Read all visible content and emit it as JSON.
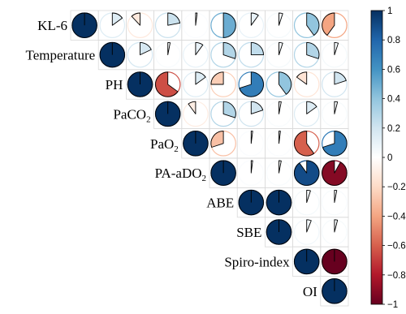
{
  "chart_data": {
    "type": "heatmap",
    "style": "corrplot-pie-upper",
    "variables": [
      [
        "KL-6",
        ""
      ],
      [
        "Temperature",
        ""
      ],
      [
        "PH",
        ""
      ],
      [
        "PaCO",
        "2"
      ],
      [
        "PaO",
        "2"
      ],
      [
        "PA-aDO",
        "2"
      ],
      [
        "ABE",
        ""
      ],
      [
        "SBE",
        ""
      ],
      [
        "Spiro-index",
        ""
      ],
      [
        "OI",
        ""
      ]
    ],
    "matrix": [
      [
        1.0,
        0.15,
        -0.12,
        0.22,
        0.02,
        0.5,
        0.1,
        0.05,
        0.4,
        -0.4
      ],
      [
        0.15,
        1.0,
        0.18,
        0.03,
        0.1,
        0.3,
        0.25,
        0.05,
        0.3,
        0.05
      ],
      [
        -0.12,
        0.18,
        1.0,
        -0.65,
        0.15,
        -0.25,
        0.7,
        0.4,
        -0.15,
        0.2
      ],
      [
        0.22,
        0.03,
        -0.65,
        1.0,
        -0.1,
        0.3,
        0.2,
        0.03,
        0.15,
        0.04
      ],
      [
        0.02,
        0.1,
        0.15,
        -0.1,
        1.0,
        -0.3,
        0.02,
        0.02,
        -0.6,
        0.7
      ],
      [
        0.5,
        0.3,
        -0.25,
        0.3,
        -0.3,
        1.0,
        0.02,
        0.03,
        0.9,
        -0.92
      ],
      [
        0.1,
        0.25,
        0.7,
        0.2,
        0.02,
        0.02,
        1.0,
        1.0,
        0.05,
        0.03
      ],
      [
        0.05,
        0.05,
        0.4,
        0.03,
        0.02,
        0.03,
        1.0,
        1.0,
        0.06,
        0.04
      ],
      [
        0.4,
        0.3,
        -0.15,
        0.15,
        -0.6,
        0.9,
        0.05,
        0.06,
        1.0,
        -1.0
      ],
      [
        -0.4,
        0.05,
        0.2,
        0.04,
        0.7,
        -0.92,
        0.03,
        0.04,
        -1.0,
        1.0
      ]
    ],
    "colorbar": {
      "ticks": [
        "1",
        "0.8",
        "0.6",
        "0.4",
        "0.2",
        "0",
        "−0.2",
        "−0.4",
        "−0.6",
        "−0.8",
        "−1"
      ],
      "range": [
        -1,
        1
      ],
      "colors": [
        "#67001F",
        "#B2182B",
        "#D6604D",
        "#F4A582",
        "#FDDBC7",
        "#FFFFFF",
        "#D1E5F0",
        "#92C5DE",
        "#4393C3",
        "#2166AC",
        "#053061"
      ]
    }
  }
}
